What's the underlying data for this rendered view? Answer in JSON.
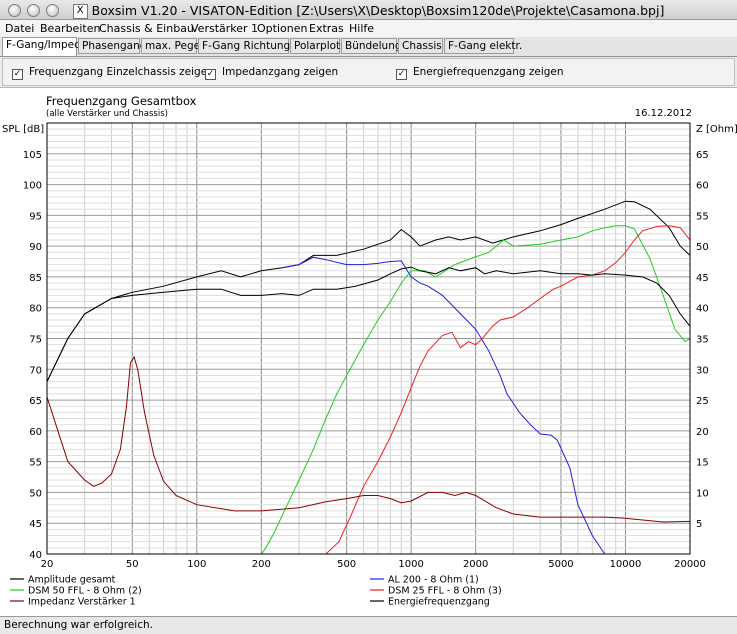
{
  "window": {
    "title": "Boxsim V1.20 - VISATON-Edition [Z:\\Users\\X\\Desktop\\Boxsim120de\\Projekte\\Casamona.bpj]"
  },
  "menu": [
    "Datei",
    "Bearbeiten",
    "Chassis & Einbau",
    "Verstärker 1",
    "Optionen",
    "Extras",
    "Hilfe"
  ],
  "tabs": [
    "F-Gang/Imped.",
    "Phasengang",
    "max. Pegel",
    "F-Gang Richtungen",
    "Polarplots",
    "Bündelung",
    "Chassis",
    "F-Gang elektr."
  ],
  "active_tab": 0,
  "checkboxes": [
    {
      "label": "Frequenzgang Einzelchassis zeigen",
      "checked": true
    },
    {
      "label": "Impedanzgang zeigen",
      "checked": true
    },
    {
      "label": "Energiefrequenzgang zeigen",
      "checked": true
    }
  ],
  "status": "Berechnung war erfolgreich.",
  "chart_data": {
    "type": "line",
    "title": "Frequenzgang Gesamtbox",
    "subtitle": "(alle Verstärker und Chassis)",
    "date": "16.12.2012",
    "ylabel": "SPL [dB]",
    "y2label": "Z [Ohm]",
    "xscale": "log",
    "xlim": [
      20,
      20000
    ],
    "ylim": [
      40,
      110
    ],
    "y2lim": [
      0,
      70
    ],
    "x_ticks": [
      "20",
      "50",
      "100",
      "200",
      "500",
      "1000",
      "2000",
      "5000",
      "10000",
      "20000"
    ],
    "y_ticks": [
      "40",
      "45",
      "50",
      "55",
      "60",
      "65",
      "70",
      "75",
      "80",
      "85",
      "90",
      "95",
      "100",
      "105"
    ],
    "y2_ticks": [
      "5",
      "10",
      "15",
      "20",
      "25",
      "30",
      "35",
      "40",
      "45",
      "50",
      "55",
      "60",
      "65"
    ],
    "grid": true,
    "legend_position": "bottom",
    "series": [
      {
        "name": "Amplitude gesamt",
        "color": "#000000",
        "axis": "left",
        "points": [
          [
            20,
            68
          ],
          [
            25,
            75
          ],
          [
            30,
            79
          ],
          [
            40,
            81.5
          ],
          [
            50,
            82.5
          ],
          [
            70,
            83.5
          ],
          [
            100,
            85
          ],
          [
            130,
            86
          ],
          [
            160,
            85
          ],
          [
            200,
            86
          ],
          [
            250,
            86.5
          ],
          [
            300,
            87
          ],
          [
            350,
            88.5
          ],
          [
            450,
            88.5
          ],
          [
            600,
            89.5
          ],
          [
            800,
            91
          ],
          [
            900,
            92.7
          ],
          [
            1000,
            91.5
          ],
          [
            1100,
            90
          ],
          [
            1300,
            91
          ],
          [
            1500,
            91.5
          ],
          [
            1700,
            91
          ],
          [
            2000,
            91.5
          ],
          [
            2400,
            90.5
          ],
          [
            3000,
            91.5
          ],
          [
            4000,
            92.5
          ],
          [
            5000,
            93.5
          ],
          [
            6000,
            94.5
          ],
          [
            8000,
            96
          ],
          [
            10000,
            97.3
          ],
          [
            11000,
            97.2
          ],
          [
            13000,
            96
          ],
          [
            16000,
            93
          ],
          [
            18000,
            90
          ],
          [
            20000,
            88.5
          ]
        ]
      },
      {
        "name": "AL 200 - 8 Ohm (1)",
        "color": "#2020dd",
        "axis": "left",
        "points": [
          [
            250,
            86.5
          ],
          [
            300,
            87
          ],
          [
            350,
            88.2
          ],
          [
            400,
            87.8
          ],
          [
            500,
            87
          ],
          [
            600,
            87
          ],
          [
            700,
            87.2
          ],
          [
            800,
            87.5
          ],
          [
            900,
            87.6
          ],
          [
            1000,
            85
          ],
          [
            1100,
            84
          ],
          [
            1200,
            83.5
          ],
          [
            1400,
            82
          ],
          [
            1700,
            79
          ],
          [
            2000,
            76.5
          ],
          [
            2300,
            73
          ],
          [
            2600,
            69
          ],
          [
            2800,
            66
          ],
          [
            3200,
            63
          ],
          [
            3600,
            61
          ],
          [
            4000,
            59.5
          ],
          [
            4500,
            59.3
          ],
          [
            4800,
            58.5
          ],
          [
            5500,
            54
          ],
          [
            6000,
            48
          ],
          [
            7000,
            43
          ],
          [
            8000,
            40
          ]
        ]
      },
      {
        "name": "DSM 50 FFL - 8 Ohm (2)",
        "color": "#22cc22",
        "axis": "left",
        "points": [
          [
            20,
            40
          ],
          [
            200,
            40
          ],
          [
            210,
            41
          ],
          [
            230,
            43.5
          ],
          [
            260,
            47.5
          ],
          [
            300,
            52
          ],
          [
            350,
            57
          ],
          [
            400,
            62
          ],
          [
            450,
            66
          ],
          [
            500,
            69
          ],
          [
            600,
            74
          ],
          [
            700,
            78
          ],
          [
            800,
            81
          ],
          [
            900,
            84
          ],
          [
            1000,
            86
          ],
          [
            1150,
            86
          ],
          [
            1300,
            85
          ],
          [
            1600,
            87
          ],
          [
            1900,
            88
          ],
          [
            2300,
            89
          ],
          [
            2700,
            91
          ],
          [
            3000,
            90
          ],
          [
            4000,
            90.3
          ],
          [
            5000,
            91
          ],
          [
            6000,
            91.5
          ],
          [
            7000,
            92.5
          ],
          [
            8000,
            93
          ],
          [
            9000,
            93.3
          ],
          [
            10000,
            93.3
          ],
          [
            11000,
            92.8
          ],
          [
            13000,
            88
          ],
          [
            15000,
            82
          ],
          [
            17000,
            76.5
          ],
          [
            19000,
            74.5
          ],
          [
            20000,
            75
          ]
        ]
      },
      {
        "name": "DSM 25 FFL - 8 Ohm (3)",
        "color": "#ee2020",
        "axis": "left",
        "points": [
          [
            400,
            40
          ],
          [
            460,
            42
          ],
          [
            520,
            46
          ],
          [
            600,
            51
          ],
          [
            700,
            55
          ],
          [
            800,
            59
          ],
          [
            900,
            63
          ],
          [
            1000,
            67
          ],
          [
            1100,
            70.5
          ],
          [
            1200,
            73
          ],
          [
            1400,
            75.5
          ],
          [
            1550,
            76
          ],
          [
            1700,
            73.5
          ],
          [
            1850,
            74.5
          ],
          [
            2000,
            74
          ],
          [
            2150,
            75
          ],
          [
            2400,
            77
          ],
          [
            2600,
            78
          ],
          [
            3000,
            78.5
          ],
          [
            3500,
            80
          ],
          [
            4000,
            81.5
          ],
          [
            4600,
            83
          ],
          [
            5000,
            83.5
          ],
          [
            6000,
            85
          ],
          [
            7000,
            85.3
          ],
          [
            8000,
            86
          ],
          [
            9000,
            87.3
          ],
          [
            10000,
            89
          ],
          [
            11000,
            91
          ],
          [
            12000,
            92.5
          ],
          [
            14000,
            93.2
          ],
          [
            16000,
            93.3
          ],
          [
            18000,
            93
          ],
          [
            20000,
            91
          ]
        ]
      },
      {
        "name": "Impedanz Verstärker 1",
        "color": "#880000",
        "axis": "right",
        "points": [
          [
            20,
            25.5
          ],
          [
            22,
            21
          ],
          [
            25,
            15
          ],
          [
            30,
            12
          ],
          [
            33,
            11
          ],
          [
            36,
            11.5
          ],
          [
            40,
            13
          ],
          [
            44,
            17
          ],
          [
            47,
            24
          ],
          [
            49,
            31
          ],
          [
            51,
            32
          ],
          [
            53,
            30
          ],
          [
            57,
            23
          ],
          [
            63,
            16
          ],
          [
            70,
            11.8
          ],
          [
            80,
            9.5
          ],
          [
            100,
            8
          ],
          [
            150,
            7
          ],
          [
            200,
            7
          ],
          [
            300,
            7.5
          ],
          [
            400,
            8.5
          ],
          [
            500,
            9
          ],
          [
            600,
            9.5
          ],
          [
            700,
            9.5
          ],
          [
            800,
            9
          ],
          [
            900,
            8.3
          ],
          [
            1000,
            8.6
          ],
          [
            1200,
            10
          ],
          [
            1400,
            10
          ],
          [
            1600,
            9.5
          ],
          [
            1800,
            10
          ],
          [
            2000,
            9.5
          ],
          [
            2500,
            7.5
          ],
          [
            3000,
            6.5
          ],
          [
            4000,
            6
          ],
          [
            6000,
            6
          ],
          [
            8000,
            6
          ],
          [
            10000,
            5.8
          ],
          [
            15000,
            5.2
          ],
          [
            20000,
            5.3
          ]
        ]
      },
      {
        "name": "Energiefrequenzgang",
        "color": "#000000",
        "axis": "left",
        "points": [
          [
            20,
            68
          ],
          [
            25,
            75
          ],
          [
            30,
            79
          ],
          [
            40,
            81.5
          ],
          [
            50,
            82
          ],
          [
            70,
            82.5
          ],
          [
            100,
            83
          ],
          [
            130,
            83
          ],
          [
            160,
            82
          ],
          [
            200,
            82
          ],
          [
            250,
            82.3
          ],
          [
            300,
            82
          ],
          [
            350,
            83
          ],
          [
            450,
            83
          ],
          [
            550,
            83.5
          ],
          [
            700,
            84.5
          ],
          [
            800,
            85.5
          ],
          [
            900,
            86.3
          ],
          [
            1000,
            86.6
          ],
          [
            1100,
            86
          ],
          [
            1300,
            85.5
          ],
          [
            1500,
            86.5
          ],
          [
            1700,
            86
          ],
          [
            2000,
            86.5
          ],
          [
            2200,
            85.5
          ],
          [
            2500,
            86
          ],
          [
            3000,
            85.5
          ],
          [
            4000,
            86
          ],
          [
            5000,
            85.5
          ],
          [
            6000,
            85.5
          ],
          [
            7000,
            85.3
          ],
          [
            8000,
            85.5
          ],
          [
            10000,
            85.3
          ],
          [
            12000,
            85
          ],
          [
            14000,
            84
          ],
          [
            16000,
            82
          ],
          [
            18000,
            79
          ],
          [
            20000,
            77
          ]
        ]
      }
    ]
  }
}
